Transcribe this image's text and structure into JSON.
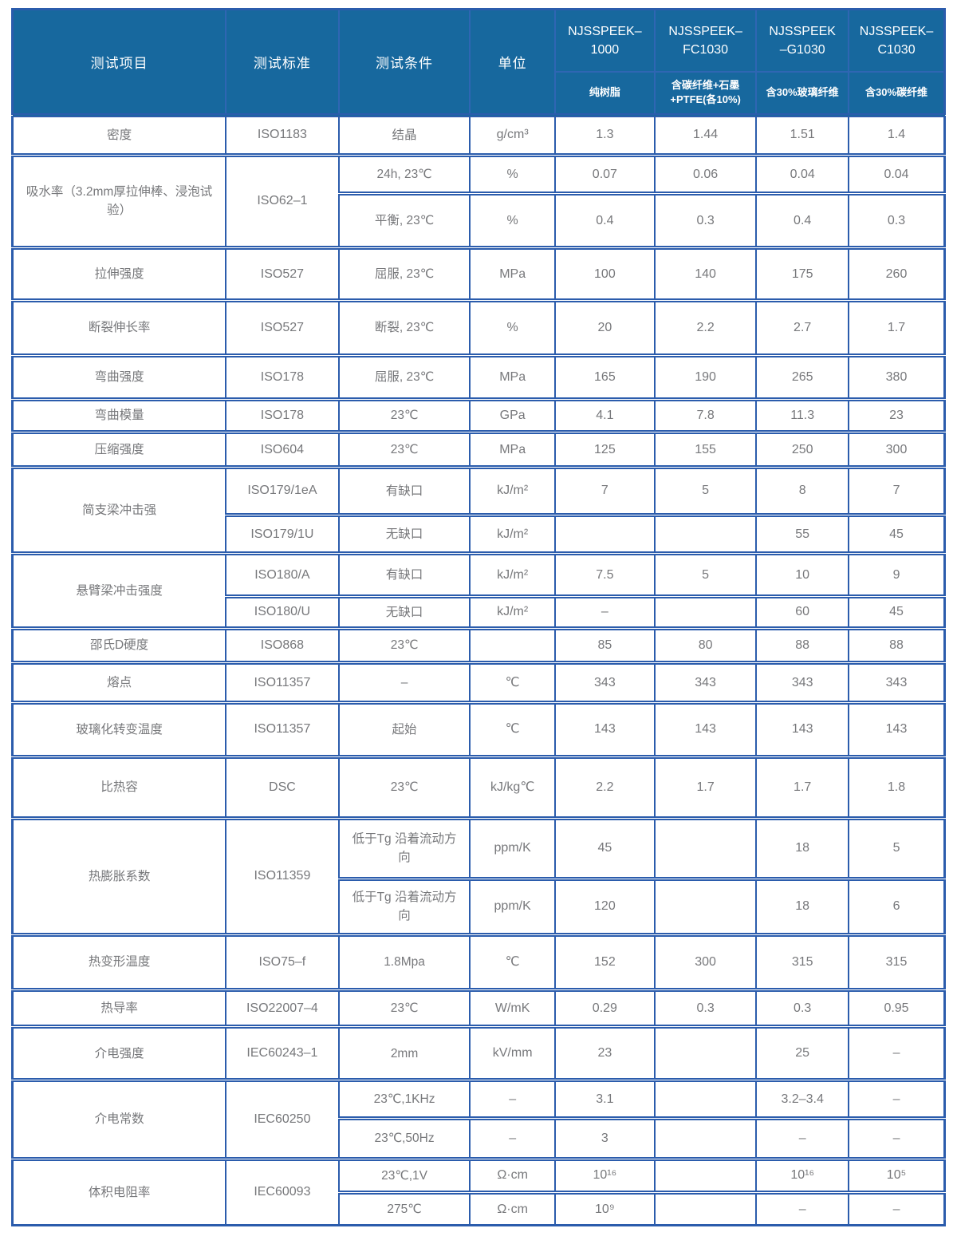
{
  "colors": {
    "header_bg": "#17689e",
    "grid_border": "#2b5cac",
    "header_line": "#2f66b3",
    "value_text": "#77787b"
  },
  "table": {
    "header": {
      "item": "测试项目",
      "standard": "测试标准",
      "condition": "测试条件",
      "unit": "单位",
      "products": [
        {
          "model": "NJSSPEEK–1000",
          "desc": "纯树脂"
        },
        {
          "model": "NJSSPEEK–FC1030",
          "desc": "含碳纤维+石墨+PTFE(各10%)"
        },
        {
          "model": "NJSSPEEK–G1030",
          "desc": "含30%玻璃纤维"
        },
        {
          "model": "NJSSPEEK–C1030",
          "desc": "含30%碳纤维"
        }
      ]
    },
    "groups": [
      {
        "item": "密度",
        "standard": "ISO1183",
        "rows": [
          {
            "condition": "结晶",
            "unit": "g/cm³",
            "values": [
              "1.3",
              "1.44",
              "1.51",
              "1.4"
            ]
          }
        ]
      },
      {
        "item": "吸水率（3.2mm厚拉伸棒、浸泡试验）",
        "standard": "ISO62–1",
        "rows": [
          {
            "condition": "24h, 23℃",
            "unit": "%",
            "values": [
              "0.07",
              "0.06",
              "0.04",
              "0.04"
            ]
          },
          {
            "condition": "平衡, 23℃",
            "unit": "%",
            "values": [
              "0.4",
              "0.3",
              "0.4",
              "0.3"
            ]
          }
        ]
      },
      {
        "item": "拉伸强度",
        "standard": "ISO527",
        "rows": [
          {
            "condition": "屈服, 23℃",
            "unit": "MPa",
            "values": [
              "100",
              "140",
              "175",
              "260"
            ]
          }
        ]
      },
      {
        "item": "断裂伸长率",
        "standard": "ISO527",
        "rows": [
          {
            "condition": "断裂, 23℃",
            "unit": "%",
            "values": [
              "20",
              "2.2",
              "2.7",
              "1.7"
            ]
          }
        ]
      },
      {
        "item": "弯曲强度",
        "standard": "ISO178",
        "rows": [
          {
            "condition": "屈服, 23℃",
            "unit": "MPa",
            "values": [
              "165",
              "190",
              "265",
              "380"
            ]
          }
        ]
      },
      {
        "item": "弯曲模量",
        "standard": "ISO178",
        "rows": [
          {
            "condition": "23℃",
            "unit": "GPa",
            "values": [
              "4.1",
              "7.8",
              "11.3",
              "23"
            ]
          }
        ]
      },
      {
        "item": "压缩强度",
        "standard": "ISO604",
        "rows": [
          {
            "condition": "23℃",
            "unit": "MPa",
            "values": [
              "125",
              "155",
              "250",
              "300"
            ]
          }
        ]
      },
      {
        "item": "简支梁冲击强",
        "rows": [
          {
            "standard": "ISO179/1eA",
            "condition": "有缺口",
            "unit": "kJ/m²",
            "values": [
              "7",
              "5",
              "8",
              "7"
            ]
          },
          {
            "standard": "ISO179/1U",
            "condition": "无缺口",
            "unit": "kJ/m²",
            "values": [
              "",
              "",
              "55",
              "45"
            ]
          }
        ]
      },
      {
        "item": "悬臂梁冲击强度",
        "rows": [
          {
            "standard": "ISO180/A",
            "condition": "有缺口",
            "unit": "kJ/m²",
            "values": [
              "7.5",
              "5",
              "10",
              "9"
            ]
          },
          {
            "standard": "ISO180/U",
            "condition": "无缺口",
            "unit": "kJ/m²",
            "values": [
              "–",
              "",
              "60",
              "45"
            ]
          }
        ]
      },
      {
        "item": "邵氏D硬度",
        "standard": "ISO868",
        "rows": [
          {
            "condition": "23℃",
            "unit": "",
            "values": [
              "85",
              "80",
              "88",
              "88"
            ]
          }
        ]
      },
      {
        "item": "熔点",
        "standard": "ISO11357",
        "rows": [
          {
            "condition": "–",
            "unit": "℃",
            "values": [
              "343",
              "343",
              "343",
              "343"
            ]
          }
        ]
      },
      {
        "item": "玻璃化转变温度",
        "standard": "ISO11357",
        "rows": [
          {
            "condition": "起始",
            "unit": "℃",
            "values": [
              "143",
              "143",
              "143",
              "143"
            ]
          }
        ]
      },
      {
        "item": "比热容",
        "standard": "DSC",
        "rows": [
          {
            "condition": "23℃",
            "unit": "kJ/kg℃",
            "values": [
              "2.2",
              "1.7",
              "1.7",
              "1.8"
            ]
          }
        ]
      },
      {
        "item": "热膨胀系数",
        "standard": "ISO11359",
        "rows": [
          {
            "condition": "低于Tg 沿着流动方向",
            "unit": "ppm/K",
            "values": [
              "45",
              "",
              "18",
              "5"
            ]
          },
          {
            "condition": "低于Tg 沿着流动方向",
            "unit": "ppm/K",
            "values": [
              "120",
              "",
              "18",
              "6"
            ]
          }
        ]
      },
      {
        "item": "热变形温度",
        "standard": "ISO75–f",
        "rows": [
          {
            "condition": "1.8Mpa",
            "unit": "℃",
            "values": [
              "152",
              "300",
              "315",
              "315"
            ]
          }
        ]
      },
      {
        "item": "热导率",
        "standard": "ISO22007–4",
        "rows": [
          {
            "condition": "23℃",
            "unit": "W/mK",
            "values": [
              "0.29",
              "0.3",
              "0.3",
              "0.95"
            ]
          }
        ]
      },
      {
        "item": "介电强度",
        "standard": "IEC60243–1",
        "rows": [
          {
            "condition": "2mm",
            "unit": "kV/mm",
            "values": [
              "23",
              "",
              "25",
              "–"
            ]
          }
        ]
      },
      {
        "item": "介电常数",
        "standard": "IEC60250",
        "rows": [
          {
            "condition": "23℃,1KHz",
            "unit": "–",
            "values": [
              "3.1",
              "",
              "3.2–3.4",
              "–"
            ]
          },
          {
            "condition": "23℃,50Hz",
            "unit": "–",
            "values": [
              "3",
              "",
              "–",
              "–"
            ]
          }
        ]
      },
      {
        "item": "体积电阻率",
        "standard": "IEC60093",
        "rows": [
          {
            "condition": "23℃,1V",
            "unit": "Ω·cm",
            "values": [
              "10¹⁶",
              "",
              "10¹⁶",
              "10⁵"
            ]
          },
          {
            "condition": "275℃",
            "unit": "Ω·cm",
            "values": [
              "10⁹",
              "",
              "–",
              "–"
            ]
          }
        ]
      }
    ]
  }
}
